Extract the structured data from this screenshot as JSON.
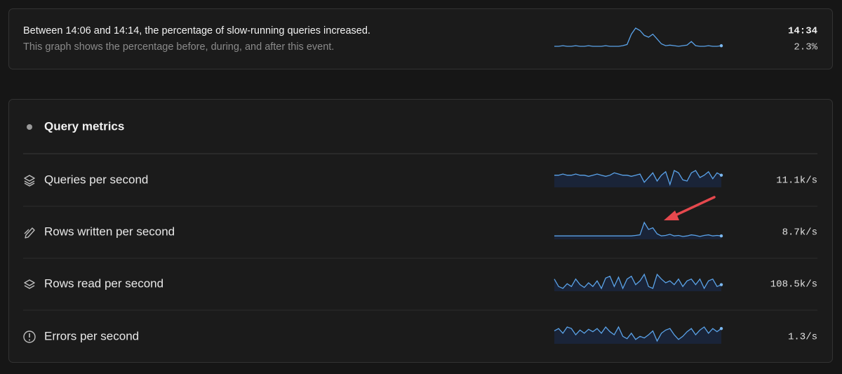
{
  "event_card": {
    "headline": "Between 14:06 and 14:14, the percentage of slow-running queries increased.",
    "description": "This graph shows the percentage before, during, and after this event.",
    "time": "14:34",
    "value_label": "2.3%",
    "sparkline": [
      10,
      10,
      11,
      10,
      10,
      11,
      10,
      10,
      11,
      10,
      10,
      10,
      11,
      10,
      10,
      10,
      11,
      13,
      30,
      40,
      36,
      28,
      25,
      30,
      22,
      14,
      11,
      12,
      11,
      10,
      11,
      12,
      18,
      11,
      10,
      10,
      11,
      10,
      10,
      11
    ]
  },
  "metrics_panel": {
    "title": "Query metrics",
    "rows": [
      {
        "label": "Queries per second",
        "value": "11.1k/s",
        "sparkline": [
          20,
          20,
          21,
          20,
          20,
          21,
          20,
          20,
          19,
          20,
          21,
          20,
          19,
          20,
          22,
          21,
          20,
          20,
          19,
          20,
          21,
          14,
          18,
          22,
          15,
          20,
          23,
          12,
          24,
          22,
          16,
          15,
          22,
          24,
          18,
          20,
          23,
          17,
          22,
          20
        ]
      },
      {
        "label": "Rows written per second",
        "value": "8.7k/s",
        "sparkline": [
          10,
          10,
          10,
          10,
          10,
          10,
          10,
          10,
          10,
          10,
          10,
          10,
          10,
          10,
          10,
          10,
          10,
          10,
          10,
          11,
          12,
          35,
          22,
          25,
          14,
          10,
          11,
          13,
          10,
          11,
          9,
          10,
          12,
          11,
          9,
          11,
          12,
          10,
          11,
          10
        ]
      },
      {
        "label": "Rows read per second",
        "value": "108.5k/s",
        "sparkline": [
          30,
          22,
          20,
          25,
          22,
          30,
          24,
          21,
          26,
          22,
          28,
          20,
          31,
          33,
          22,
          32,
          20,
          30,
          33,
          24,
          28,
          35,
          22,
          20,
          35,
          30,
          26,
          28,
          24,
          30,
          22,
          28,
          30,
          24,
          30,
          20,
          28,
          30,
          22,
          24
        ]
      },
      {
        "label": "Errors per second",
        "value": "1.3/s",
        "sparkline": [
          25,
          28,
          22,
          30,
          28,
          20,
          26,
          22,
          27,
          24,
          28,
          22,
          30,
          24,
          20,
          30,
          18,
          15,
          22,
          14,
          18,
          16,
          20,
          25,
          12,
          22,
          26,
          28,
          20,
          14,
          18,
          24,
          28,
          20,
          26,
          30,
          22,
          28,
          24,
          28
        ]
      }
    ]
  }
}
